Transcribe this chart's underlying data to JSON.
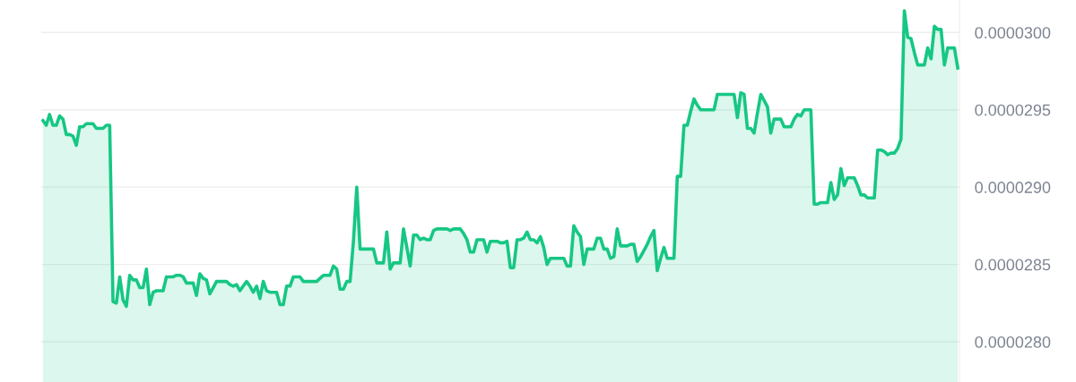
{
  "chart_data": {
    "type": "area",
    "categories": [
      null,
      null,
      null,
      null,
      null,
      null,
      null,
      null,
      null,
      null,
      null,
      null,
      null,
      null,
      null,
      null,
      null,
      null,
      null,
      null,
      null,
      null,
      null,
      null,
      null,
      null,
      null,
      null,
      null,
      null,
      null,
      null,
      null,
      null,
      null,
      null,
      null,
      null,
      null,
      null,
      null,
      null,
      null,
      null,
      null,
      null,
      null,
      null,
      null,
      null,
      null,
      null,
      null,
      null,
      null,
      null,
      null,
      null,
      null,
      null,
      null,
      null,
      null,
      null,
      null,
      null,
      null,
      null,
      null,
      null,
      null,
      null,
      null,
      null,
      null,
      null,
      null,
      null,
      null,
      null,
      null,
      null,
      null,
      null,
      null,
      null,
      null,
      null,
      null,
      null,
      null,
      null,
      null,
      null,
      null,
      null,
      null,
      null,
      null,
      null,
      null,
      null,
      null,
      null,
      null,
      null,
      null,
      null,
      null,
      null,
      null,
      null,
      null,
      null,
      null,
      null,
      null,
      null,
      null,
      null,
      null,
      null,
      null,
      null,
      null,
      null,
      null,
      null,
      null,
      null,
      null,
      null,
      null,
      null,
      null,
      null,
      null,
      null,
      null,
      null,
      null,
      null,
      null,
      null,
      null,
      null,
      null,
      null,
      null,
      null,
      null,
      null,
      null,
      null,
      null,
      null,
      null,
      null,
      null,
      null,
      null,
      null,
      null,
      null,
      null,
      null,
      null,
      null,
      null,
      null,
      null,
      null,
      null,
      null,
      null,
      null,
      null,
      null,
      null,
      null,
      null,
      null,
      null,
      null,
      null,
      null,
      null,
      null,
      null,
      null,
      null,
      null,
      null,
      null,
      null,
      null,
      null,
      null,
      null,
      null,
      null,
      null,
      null,
      null,
      null,
      null,
      null,
      null,
      null,
      null,
      null,
      null,
      null,
      null,
      null,
      null,
      null,
      null,
      null,
      null,
      null,
      null,
      null,
      null,
      null,
      null,
      null,
      null,
      null,
      null,
      null,
      null,
      null,
      null,
      null,
      null,
      null,
      null,
      null,
      null,
      null,
      null,
      null,
      null,
      null,
      null,
      null,
      null,
      null,
      null,
      null,
      null,
      null,
      null,
      null,
      null,
      null,
      null,
      null,
      null,
      null,
      null,
      null,
      null,
      null,
      null,
      null,
      null,
      null,
      null,
      null,
      null,
      null,
      null,
      null
    ],
    "values": [
      2.943e-05,
      2.94e-05,
      2.947e-05,
      2.94e-05,
      2.94e-05,
      2.946e-05,
      2.944e-05,
      2.934e-05,
      2.934e-05,
      2.933e-05,
      2.927e-05,
      2.939e-05,
      2.939e-05,
      2.941e-05,
      2.941e-05,
      2.941e-05,
      2.938e-05,
      2.938e-05,
      2.938e-05,
      2.94e-05,
      2.94e-05,
      2.826e-05,
      2.825e-05,
      2.842e-05,
      2.827e-05,
      2.823e-05,
      2.843e-05,
      2.84e-05,
      2.84e-05,
      2.835e-05,
      2.835e-05,
      2.847e-05,
      2.824e-05,
      2.832e-05,
      2.833e-05,
      2.833e-05,
      2.833e-05,
      2.842e-05,
      2.842e-05,
      2.842e-05,
      2.843e-05,
      2.843e-05,
      2.842e-05,
      2.838e-05,
      2.838e-05,
      2.838e-05,
      2.83e-05,
      2.844e-05,
      2.841e-05,
      2.84e-05,
      2.831e-05,
      2.835e-05,
      2.839e-05,
      2.839e-05,
      2.839e-05,
      2.839e-05,
      2.837e-05,
      2.836e-05,
      2.837e-05,
      2.833e-05,
      2.836e-05,
      2.839e-05,
      2.836e-05,
      2.832e-05,
      2.836e-05,
      2.828e-05,
      2.839e-05,
      2.833e-05,
      2.832e-05,
      2.832e-05,
      2.832e-05,
      2.824e-05,
      2.824e-05,
      2.836e-05,
      2.836e-05,
      2.842e-05,
      2.842e-05,
      2.842e-05,
      2.839e-05,
      2.839e-05,
      2.839e-05,
      2.839e-05,
      2.839e-05,
      2.841e-05,
      2.843e-05,
      2.843e-05,
      2.843e-05,
      2.849e-05,
      2.847e-05,
      2.834e-05,
      2.834e-05,
      2.839e-05,
      2.839e-05,
      2.865e-05,
      2.9e-05,
      2.86e-05,
      2.86e-05,
      2.86e-05,
      2.86e-05,
      2.86e-05,
      2.851e-05,
      2.851e-05,
      2.851e-05,
      2.871e-05,
      2.847e-05,
      2.851e-05,
      2.851e-05,
      2.851e-05,
      2.873e-05,
      2.861e-05,
      2.849e-05,
      2.869e-05,
      2.869e-05,
      2.866e-05,
      2.867e-05,
      2.866e-05,
      2.866e-05,
      2.872e-05,
      2.873e-05,
      2.873e-05,
      2.873e-05,
      2.873e-05,
      2.872e-05,
      2.873e-05,
      2.873e-05,
      2.873e-05,
      2.87e-05,
      2.866e-05,
      2.858e-05,
      2.858e-05,
      2.866e-05,
      2.866e-05,
      2.866e-05,
      2.858e-05,
      2.865e-05,
      2.865e-05,
      2.865e-05,
      2.864e-05,
      2.864e-05,
      2.865e-05,
      2.848e-05,
      2.848e-05,
      2.866e-05,
      2.866e-05,
      2.867e-05,
      2.871e-05,
      2.866e-05,
      2.866e-05,
      2.864e-05,
      2.868e-05,
      2.861e-05,
      2.85e-05,
      2.854e-05,
      2.854e-05,
      2.854e-05,
      2.854e-05,
      2.854e-05,
      2.849e-05,
      2.849e-05,
      2.875e-05,
      2.871e-05,
      2.868e-05,
      2.85e-05,
      2.86e-05,
      2.86e-05,
      2.86e-05,
      2.867e-05,
      2.867e-05,
      2.86e-05,
      2.86e-05,
      2.854e-05,
      2.855e-05,
      2.873e-05,
      2.862e-05,
      2.862e-05,
      2.862e-05,
      2.863e-05,
      2.863e-05,
      2.852e-05,
      2.855e-05,
      2.859e-05,
      2.863e-05,
      2.868e-05,
      2.872e-05,
      2.846e-05,
      2.854e-05,
      2.861e-05,
      2.854e-05,
      2.854e-05,
      2.854e-05,
      2.907e-05,
      2.907e-05,
      2.94e-05,
      2.94e-05,
      2.949e-05,
      2.957e-05,
      2.953e-05,
      2.95e-05,
      2.95e-05,
      2.95e-05,
      2.95e-05,
      2.95e-05,
      2.96e-05,
      2.96e-05,
      2.96e-05,
      2.96e-05,
      2.96e-05,
      2.96e-05,
      2.945e-05,
      2.961e-05,
      2.96e-05,
      2.938e-05,
      2.938e-05,
      2.935e-05,
      2.948e-05,
      2.96e-05,
      2.956e-05,
      2.952e-05,
      2.935e-05,
      2.944e-05,
      2.944e-05,
      2.944e-05,
      2.939e-05,
      2.939e-05,
      2.939e-05,
      2.944e-05,
      2.947e-05,
      2.946e-05,
      2.95e-05,
      2.95e-05,
      2.95e-05,
      2.889e-05,
      2.889e-05,
      2.89e-05,
      2.89e-05,
      2.89e-05,
      2.903e-05,
      2.892e-05,
      2.895e-05,
      2.912e-05,
      2.901e-05,
      2.906e-05,
      2.906e-05,
      2.906e-05,
      2.901e-05,
      2.895e-05,
      2.895e-05,
      2.893e-05,
      2.893e-05,
      2.893e-05,
      2.924e-05,
      2.924e-05,
      2.923e-05,
      2.921e-05,
      2.922e-05,
      2.922e-05,
      2.925e-05,
      2.931e-05,
      3.014e-05,
      2.997e-05,
      2.996e-05,
      2.987e-05,
      2.979e-05,
      2.979e-05,
      2.979e-05,
      2.99e-05,
      2.983e-05,
      3.004e-05,
      3.002e-05,
      3.002e-05,
      2.979e-05,
      2.99e-05,
      2.99e-05,
      2.99e-05,
      2.977e-05
    ],
    "color": "#16c784",
    "ylim": [
      2.774e-05,
      3.021e-05
    ],
    "yticks": [
      {
        "value": 2.8e-05,
        "label": "0.0000280"
      },
      {
        "value": 2.85e-05,
        "label": "0.0000285"
      },
      {
        "value": 2.9e-05,
        "label": "0.0000290"
      },
      {
        "value": 2.95e-05,
        "label": "0.0000295"
      },
      {
        "value": 3e-05,
        "label": "0.0000300"
      }
    ],
    "grid": "y",
    "tick_labels": "y"
  }
}
